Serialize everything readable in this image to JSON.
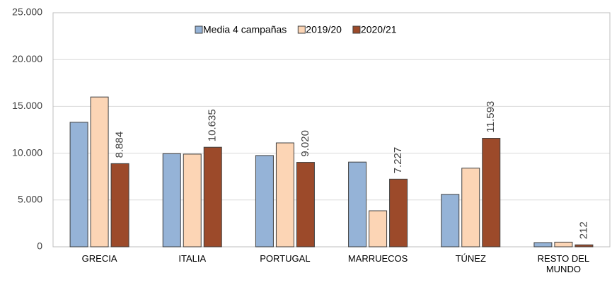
{
  "chart_data": {
    "type": "bar",
    "categories": [
      "GRECIA",
      "ITALIA",
      "PORTUGAL",
      "MARRUECOS",
      "TÚNEZ",
      "RESTO DEL MUNDO"
    ],
    "series": [
      {
        "name": "Media 4 campañas",
        "color": "#95b3d7",
        "values": [
          13300,
          9950,
          9750,
          9050,
          5600,
          450
        ]
      },
      {
        "name": "2019/20",
        "color": "#fcd5b5",
        "values": [
          16000,
          9900,
          11100,
          3850,
          8400,
          500
        ]
      },
      {
        "name": "2020/21",
        "color": "#9c4a2a",
        "values": [
          8884,
          10635,
          9020,
          7227,
          11593,
          212
        ],
        "value_labels": [
          "8.884",
          "10.635",
          "9.020",
          "7.227",
          "11.593",
          "212"
        ]
      }
    ],
    "ylim": [
      0,
      25000
    ],
    "yticks": [
      0,
      {
        "value": 5000,
        "label": "5.000"
      },
      {
        "value": 10000,
        "label": "10.000"
      },
      {
        "value": 15000,
        "label": "15.000"
      },
      {
        "value": 20000,
        "label": "20.000"
      },
      {
        "value": 25000,
        "label": "25.000"
      }
    ],
    "grid": true,
    "legend": "top"
  }
}
